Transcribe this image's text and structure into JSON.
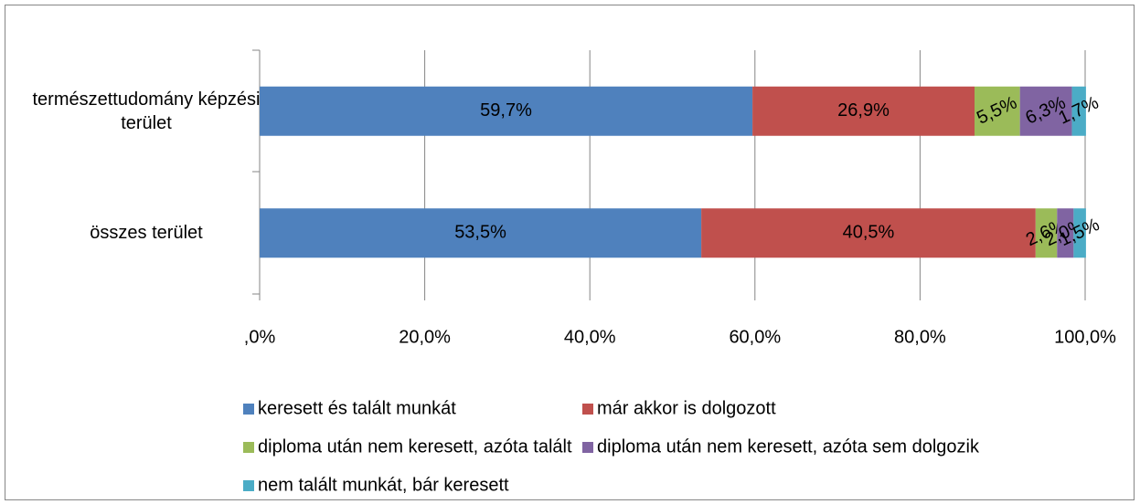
{
  "chart_data": {
    "type": "stacked-barh",
    "categories": [
      "természettudomány képzési terület",
      "összes terület"
    ],
    "series": [
      {
        "name": "keresett és talált munkát",
        "color": "#4f81bd",
        "values": [
          59.7,
          53.5
        ],
        "value_labels": [
          "59,7%",
          "53,5%"
        ]
      },
      {
        "name": "már akkor is dolgozott",
        "color": "#c0504d",
        "values": [
          26.9,
          40.5
        ],
        "value_labels": [
          "26,9%",
          "40,5%"
        ]
      },
      {
        "name": "diploma után nem keresett, azóta talált",
        "color": "#9bbb59",
        "values": [
          5.5,
          2.6
        ],
        "value_labels": [
          "5,5%",
          "2,6%"
        ]
      },
      {
        "name": "diploma után nem keresett, azóta sem dolgozik",
        "color": "#8064a2",
        "values": [
          6.3,
          2.0
        ],
        "value_labels": [
          "6,3%",
          "2,0%"
        ]
      },
      {
        "name": "nem talált munkát, bár keresett",
        "color": "#4bacc6",
        "values": [
          1.7,
          1.5
        ],
        "value_labels": [
          "1,7%",
          "1,5%"
        ]
      }
    ],
    "xlim": [
      0,
      100
    ],
    "xticks": [
      {
        "value": 0,
        "label": ",0%"
      },
      {
        "value": 20,
        "label": "20,0%"
      },
      {
        "value": 40,
        "label": "40,0%"
      },
      {
        "value": 60,
        "label": "60,0%"
      },
      {
        "value": 80,
        "label": "80,0%"
      },
      {
        "value": 100,
        "label": "100,0%"
      }
    ],
    "grid": true,
    "legend": "bottom"
  }
}
